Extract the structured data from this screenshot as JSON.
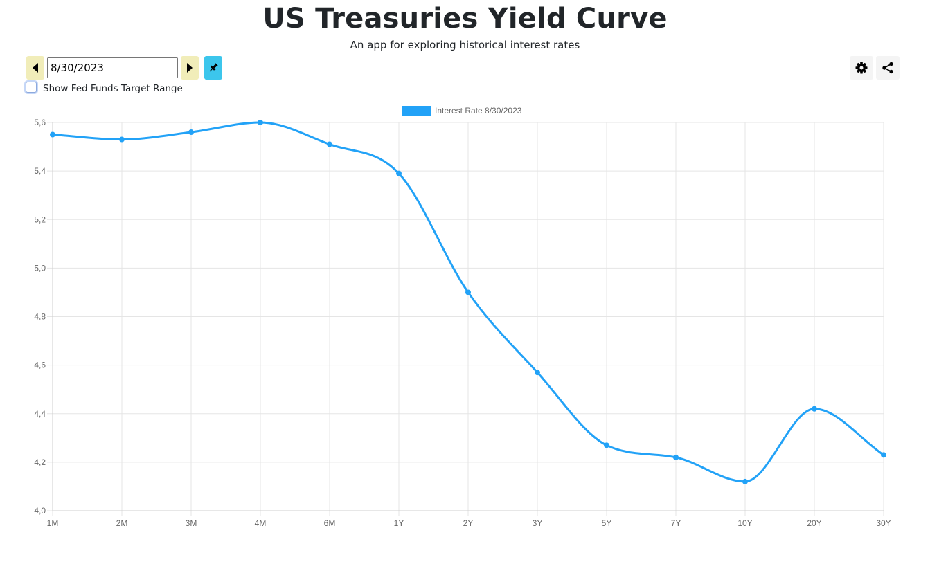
{
  "header": {
    "title": "US Treasuries Yield Curve",
    "subtitle": "An app for exploring historical interest rates"
  },
  "controls": {
    "date_value": "8/30/2023",
    "prev_icon": "triangle-left-icon",
    "next_icon": "triangle-right-icon",
    "pin_icon": "pin-icon",
    "settings_icon": "gear-icon",
    "share_icon": "share-icon",
    "fed_funds_checkbox_label": "Show Fed Funds Target Range",
    "fed_funds_checked": false
  },
  "colors": {
    "series": "#22a2f7",
    "nav_button": "#f1edb9",
    "pin_button": "#3cc6ec",
    "grid": "#e5e5e5"
  },
  "chart_data": {
    "type": "line",
    "title": "",
    "xlabel": "",
    "ylabel": "",
    "categories": [
      "1M",
      "2M",
      "3M",
      "4M",
      "6M",
      "1Y",
      "2Y",
      "3Y",
      "5Y",
      "7Y",
      "10Y",
      "20Y",
      "30Y"
    ],
    "series": [
      {
        "name": "Interest Rate 8/30/2023",
        "values": [
          5.55,
          5.53,
          5.56,
          5.6,
          5.51,
          5.39,
          4.9,
          4.57,
          4.27,
          4.22,
          4.12,
          4.42,
          4.23
        ]
      }
    ],
    "ylim": [
      4.0,
      5.6
    ],
    "yticks": [
      "4,0",
      "4,2",
      "4,4",
      "4,6",
      "4,8",
      "5,0",
      "5,2",
      "5,4",
      "5,6"
    ],
    "legend": "top-center",
    "grid": true
  }
}
